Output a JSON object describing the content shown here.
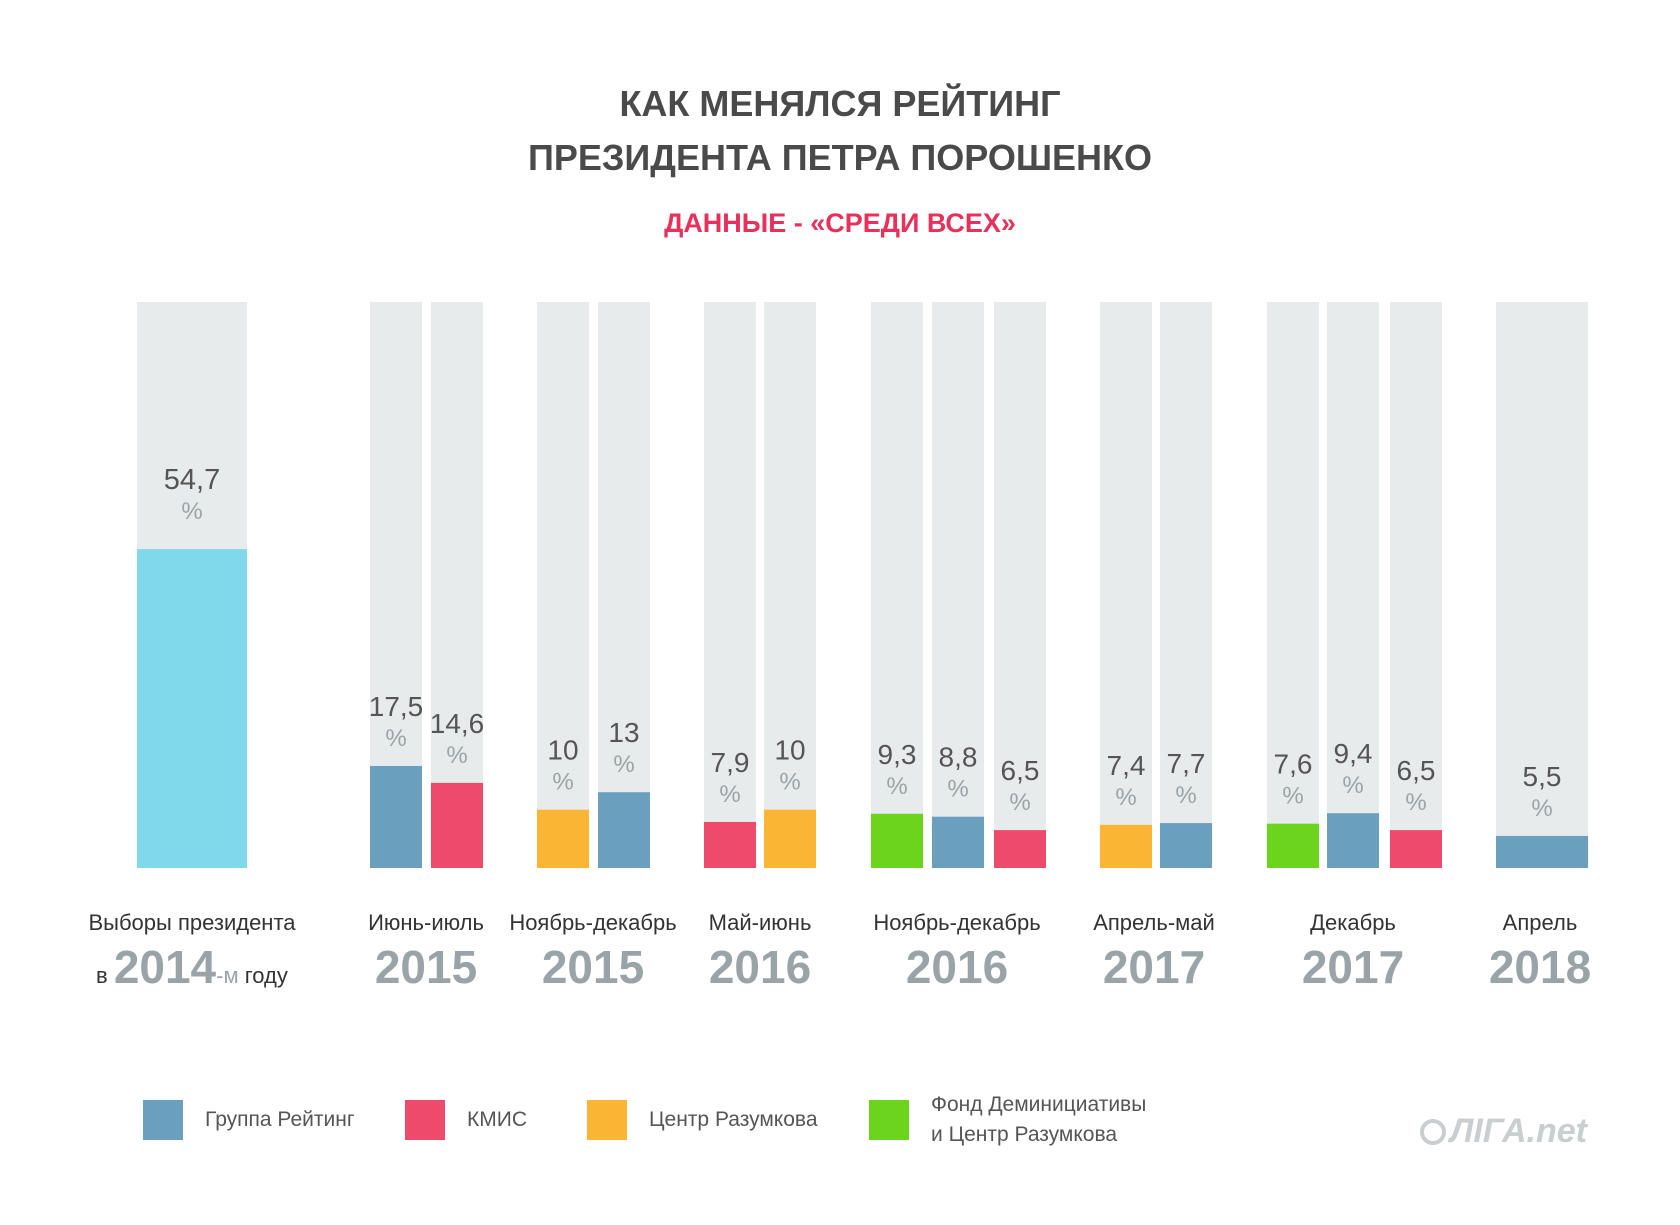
{
  "header": {
    "title_line1": "КАК МЕНЯЛСЯ РЕЙТИНГ",
    "title_line2": "ПРЕЗИДЕНТА ПЕТРА ПОРОШЕНКО",
    "subtitle": "ДАННЫЕ - «СРЕДИ ВСЕХ»"
  },
  "colors": {
    "background_bar": "#e8ebec",
    "reiting": "#6a9fbd",
    "kmis": "#ee4a6c",
    "razumkov": "#fbb534",
    "fond": "#6dd41d",
    "election": "#80d9ea",
    "value_text": "#555555",
    "percent_text": "#9aa4a8"
  },
  "first_group": {
    "period": "Выборы президента",
    "prefix": "в",
    "year": "2014",
    "suffix": "-м",
    "tail": "году"
  },
  "groups": [
    {
      "period": "Июнь-июль",
      "year": "2015"
    },
    {
      "period": "Ноябрь-декабрь",
      "year": "2015"
    },
    {
      "period": "Май-июнь",
      "year": "2016"
    },
    {
      "period": "Ноябрь-декабрь",
      "year": "2016"
    },
    {
      "period": "Апрель-май",
      "year": "2017"
    },
    {
      "period": "Декабрь",
      "year": "2017"
    },
    {
      "period": "Апрель",
      "year": "2018"
    }
  ],
  "percent_sign": "%",
  "legend": [
    {
      "key": "reiting",
      "label": "Группа Рейтинг"
    },
    {
      "key": "kmis",
      "label": "КМИС"
    },
    {
      "key": "razumkov",
      "label": "Центр Разумкова"
    },
    {
      "key": "fond",
      "label_line1": "Фонд Деминициативы",
      "label_line2": "и Центр Разумкова"
    }
  ],
  "logo": "ЛIГА.net",
  "chart_data": {
    "type": "bar",
    "ylim": [
      0,
      100
    ],
    "series": [
      {
        "name": "Выборы президента",
        "points": [
          {
            "group": 0,
            "value": 54.7,
            "label": "54,7",
            "source": "election"
          }
        ]
      },
      {
        "name": "Группа Рейтинг",
        "points": [
          {
            "group": 1,
            "value": 17.5,
            "label": "17,5"
          },
          {
            "group": 2,
            "value": 13,
            "label": "13"
          },
          {
            "group": 4,
            "value": 8.8,
            "label": "8,8"
          },
          {
            "group": 5,
            "value": 7.7,
            "label": "7,7"
          },
          {
            "group": 6,
            "value": 9.4,
            "label": "9,4"
          },
          {
            "group": 7,
            "value": 5.5,
            "label": "5,5"
          }
        ]
      },
      {
        "name": "КМИС",
        "points": [
          {
            "group": 1,
            "value": 14.6,
            "label": "14,6"
          },
          {
            "group": 3,
            "value": 7.9,
            "label": "7,9"
          },
          {
            "group": 4,
            "value": 6.5,
            "label": "6,5"
          },
          {
            "group": 6,
            "value": 6.5,
            "label": "6,5"
          }
        ]
      },
      {
        "name": "Центр Разумкова",
        "points": [
          {
            "group": 2,
            "value": 10,
            "label": "10"
          },
          {
            "group": 3,
            "value": 10,
            "label": "10"
          },
          {
            "group": 5,
            "value": 7.4,
            "label": "7,4"
          }
        ]
      },
      {
        "name": "Фонд Деминициативы и Центр Разумкова",
        "points": [
          {
            "group": 4,
            "value": 9.3,
            "label": "9,3"
          },
          {
            "group": 6,
            "value": 7.6,
            "label": "7,6"
          }
        ]
      }
    ],
    "bars": [
      {
        "group": 0,
        "source": "election",
        "value": 54.7,
        "label": "54,7"
      },
      {
        "group": 1,
        "source": "reiting",
        "value": 17.5,
        "label": "17,5"
      },
      {
        "group": 1,
        "source": "kmis",
        "value": 14.6,
        "label": "14,6"
      },
      {
        "group": 2,
        "source": "razumkov",
        "value": 10,
        "label": "10"
      },
      {
        "group": 2,
        "source": "reiting",
        "value": 13,
        "label": "13"
      },
      {
        "group": 3,
        "source": "kmis",
        "value": 7.9,
        "label": "7,9"
      },
      {
        "group": 3,
        "source": "razumkov",
        "value": 10,
        "label": "10"
      },
      {
        "group": 4,
        "source": "fond",
        "value": 9.3,
        "label": "9,3"
      },
      {
        "group": 4,
        "source": "reiting",
        "value": 8.8,
        "label": "8,8"
      },
      {
        "group": 4,
        "source": "kmis",
        "value": 6.5,
        "label": "6,5"
      },
      {
        "group": 5,
        "source": "razumkov",
        "value": 7.4,
        "label": "7,4"
      },
      {
        "group": 5,
        "source": "reiting",
        "value": 7.7,
        "label": "7,7"
      },
      {
        "group": 6,
        "source": "fond",
        "value": 7.6,
        "label": "7,6"
      },
      {
        "group": 6,
        "source": "reiting",
        "value": 9.4,
        "label": "9,4"
      },
      {
        "group": 6,
        "source": "kmis",
        "value": 6.5,
        "label": "6,5"
      },
      {
        "group": 7,
        "source": "reiting",
        "value": 5.5,
        "label": "5,5"
      }
    ]
  }
}
